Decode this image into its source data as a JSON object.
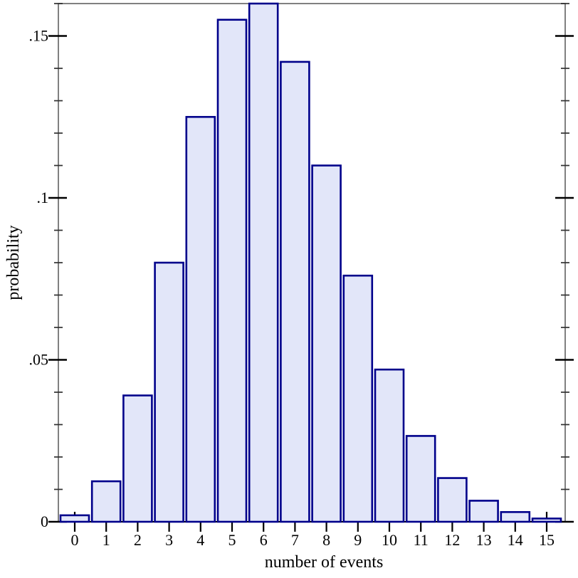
{
  "figure": {
    "background": "#ffffff"
  },
  "chart_data": {
    "type": "bar",
    "title": "",
    "xlabel": "number of events",
    "ylabel": "probability",
    "categories": [
      "0",
      "1",
      "2",
      "3",
      "4",
      "5",
      "6",
      "7",
      "8",
      "9",
      "10",
      "11",
      "12",
      "13",
      "14",
      "15"
    ],
    "values": [
      0.002,
      0.0125,
      0.039,
      0.08,
      0.125,
      0.155,
      0.16,
      0.142,
      0.11,
      0.076,
      0.047,
      0.0265,
      0.0135,
      0.0065,
      0.003,
      0.001
    ],
    "ylim": [
      0,
      0.16
    ],
    "xlim_categories": [
      0,
      15
    ],
    "y_major_ticks": [
      0,
      0.05,
      0.1,
      0.15
    ],
    "y_major_tick_labels": [
      "0",
      ".05",
      ".1",
      ".15"
    ],
    "y_minor_tick_step": 0.01,
    "grid": false,
    "legend": null,
    "frame": true,
    "bar_outline": true,
    "colors": {
      "bar_fill": "#e2e6f9",
      "bar_border": "#00008b",
      "frame_line": "#808080",
      "baseline": "#000000",
      "major_tick": "#000000",
      "minor_tick": "#303030",
      "x_tick": "#000000",
      "text": "#000000",
      "background": "#ffffff"
    }
  }
}
